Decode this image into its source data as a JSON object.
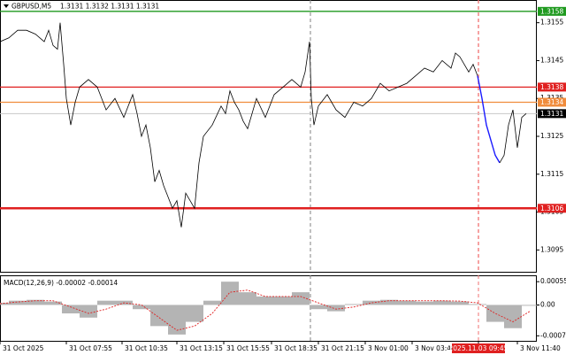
{
  "chart_data": [
    {
      "type": "line",
      "title": "GBPUSD,M5",
      "subtitle": "1.3131 1.3132 1.3131 1.3131",
      "xlim": [
        0,
        607
      ],
      "ylim": [
        1.3089,
        1.3161
      ],
      "yticks": [
        1.3155,
        1.3145,
        1.3135,
        1.3125,
        1.3115,
        1.3105,
        1.3095
      ],
      "series": [
        {
          "color": "#000000",
          "x": [
            0,
            10,
            20,
            30,
            40,
            50,
            55,
            60,
            65,
            68,
            72,
            75,
            80,
            85,
            90,
            100,
            110,
            120,
            130,
            140,
            150,
            155,
            160,
            165,
            170,
            175,
            180,
            185,
            190,
            195,
            200,
            205,
            210,
            215,
            220,
            225,
            230,
            240,
            250,
            255,
            260,
            265,
            270,
            275,
            280,
            290,
            300,
            310,
            320,
            330,
            340,
            345,
            350,
            352,
            355,
            360,
            370,
            380,
            390,
            400,
            410,
            420,
            430,
            440,
            450,
            460,
            470,
            480,
            490,
            500,
            510,
            515,
            520,
            530,
            535,
            540
          ],
          "values": [
            1.315,
            1.3151,
            1.3153,
            1.3153,
            1.3152,
            1.315,
            1.3153,
            1.3149,
            1.3148,
            1.3155,
            1.3144,
            1.3135,
            1.3128,
            1.3134,
            1.3138,
            1.314,
            1.3138,
            1.3132,
            1.3135,
            1.313,
            1.3136,
            1.3131,
            1.3125,
            1.3128,
            1.3122,
            1.3113,
            1.3116,
            1.3112,
            1.3109,
            1.3106,
            1.3108,
            1.3101,
            1.311,
            1.3108,
            1.3106,
            1.3118,
            1.3125,
            1.3128,
            1.3133,
            1.3131,
            1.3137,
            1.3134,
            1.3132,
            1.3129,
            1.3127,
            1.3135,
            1.313,
            1.3136,
            1.3138,
            1.314,
            1.3138,
            1.3142,
            1.315,
            1.3135,
            1.3128,
            1.3133,
            1.3136,
            1.3132,
            1.313,
            1.3134,
            1.3133,
            1.3135,
            1.3139,
            1.3137,
            1.3138,
            1.3139,
            1.3141,
            1.3143,
            1.3142,
            1.3145,
            1.3143,
            1.3147,
            1.3146,
            1.3142,
            1.3144,
            1.3141
          ]
        },
        {
          "color": "#1a1aff",
          "x": [
            540,
            545,
            550,
            555,
            560,
            565
          ],
          "values": [
            1.3141,
            1.3135,
            1.3128,
            1.3124,
            1.312,
            1.3118
          ]
        },
        {
          "color": "#000000",
          "x": [
            565,
            570,
            575,
            580,
            585,
            590,
            595
          ],
          "values": [
            1.3118,
            1.312,
            1.3128,
            1.3132,
            1.3122,
            1.313,
            1.3131
          ]
        }
      ],
      "levels": [
        {
          "value": 1.3158,
          "color": "#1f9a1f"
        },
        {
          "value": 1.3138,
          "color": "#e02020"
        },
        {
          "value": 1.3134,
          "color": "#f08c3c"
        },
        {
          "value": 1.3131,
          "color": "#000000"
        },
        {
          "value": 1.3106,
          "color": "#e02020"
        }
      ],
      "vlines": [
        {
          "value": 351,
          "color": "#808080"
        },
        {
          "value": 541,
          "color": "#f07070"
        }
      ]
    },
    {
      "type": "bar",
      "title": "MACD(12,26,9) -0.00002 -0.00014",
      "xlim": [
        0,
        607
      ],
      "ylim": [
        -0.00087,
        0.0007
      ],
      "yticks": [
        0.00055,
        {
          "value": 0,
          "label": "0.00"
        },
        -0.00073
      ],
      "color": "#b4b4b4",
      "x": [
        0,
        20,
        40,
        60,
        80,
        100,
        120,
        140,
        160,
        180,
        200,
        220,
        240,
        260,
        280,
        300,
        320,
        340,
        360,
        380,
        400,
        420,
        440,
        460,
        480,
        500,
        520,
        540,
        560,
        580,
        600
      ],
      "values": [
        5e-05,
        0.0001,
        0.00012,
        8e-05,
        -0.0002,
        -0.0003,
        0.0001,
        0.0001,
        -0.0001,
        -0.0005,
        -0.0007,
        -0.0004,
        0.0001,
        0.00055,
        0.0003,
        0.0002,
        0.0002,
        0.0003,
        -0.0001,
        -0.00015,
        2e-05,
        0.0001,
        0.00012,
        0.0001,
        8e-05,
        0.0001,
        8e-05,
        2e-05,
        -0.0004,
        -0.00055,
        -2e-05
      ],
      "signal": {
        "color": "#e02020",
        "values": [
          3e-05,
          7e-05,
          0.0001,
          0.0001,
          -5e-05,
          -0.0002,
          -0.0001,
          5e-05,
          0,
          -0.0003,
          -0.0006,
          -0.0005,
          -0.0002,
          0.0003,
          0.00035,
          0.0002,
          0.0002,
          0.0002,
          5e-05,
          -0.0001,
          -5e-05,
          5e-05,
          0.0001,
          0.0001,
          0.0001,
          0.0001,
          9e-05,
          5e-05,
          -0.0002,
          -0.0004,
          -0.00014
        ]
      },
      "xticks": [
        {
          "value": 0,
          "label": "31 Oct 2025"
        },
        {
          "value": 75,
          "label": "31 Oct 07:55"
        },
        {
          "value": 138,
          "label": "31 Oct 10:35"
        },
        {
          "value": 200,
          "label": "31 Oct 13:15"
        },
        {
          "value": 253,
          "label": "31 Oct 15:55"
        },
        {
          "value": 307,
          "label": "31 Oct 18:35"
        },
        {
          "value": 360,
          "label": "31 Oct 21:15"
        },
        {
          "value": 413,
          "label": "3 Nov 01:00"
        },
        {
          "value": 466,
          "label": "3 Nov 03:40"
        },
        {
          "value": 541,
          "label": "2025.11.03 09:45"
        },
        {
          "value": 585,
          "label": "3 Nov 11:40"
        }
      ]
    }
  ]
}
